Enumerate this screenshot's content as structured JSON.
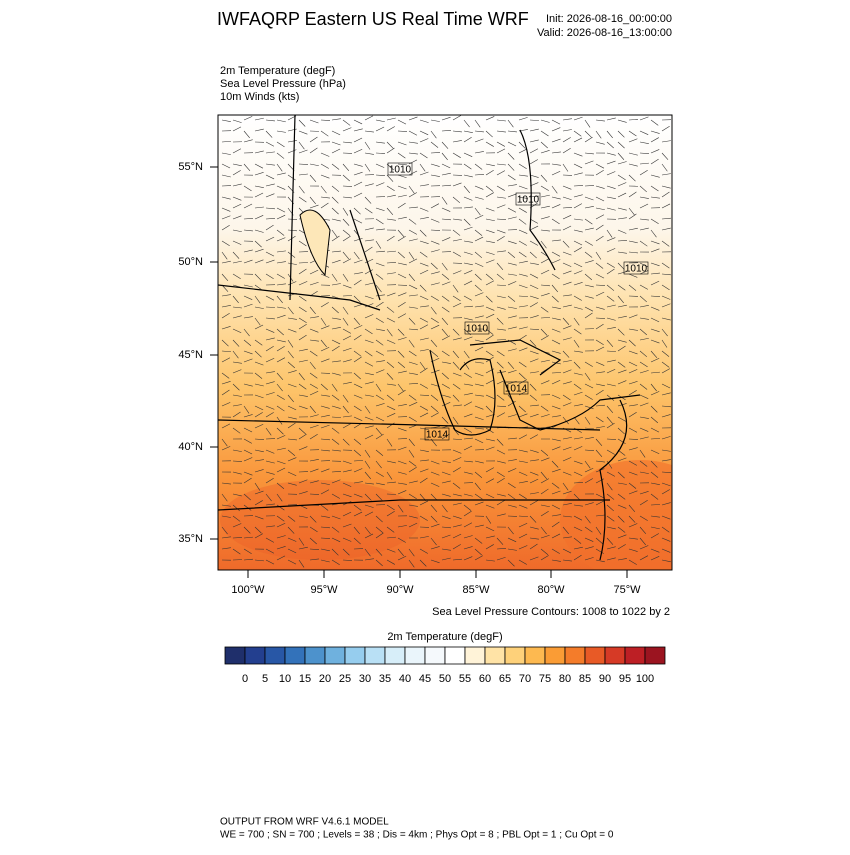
{
  "header": {
    "title": "IWFAQRP Eastern US Real Time WRF",
    "init": "Init: 2026-08-16_00:00:00",
    "valid": "Valid: 2026-08-16_13:00:00"
  },
  "fields": [
    "2m Temperature   (degF)",
    "Sea Level Pressure   (hPa)",
    "10m Winds   (kts)"
  ],
  "map": {
    "lat_labels": [
      "55°N",
      "50°N",
      "45°N",
      "40°N",
      "35°N"
    ],
    "lon_labels": [
      "100°W",
      "95°W",
      "90°W",
      "85°W",
      "80°W",
      "75°W"
    ],
    "contour_labels": [
      "1010",
      "1010",
      "1010",
      "1010",
      "1014",
      "1014"
    ],
    "contour_note": "Sea Level Pressure Contours: 1008 to 1022 by 2"
  },
  "colorbar": {
    "title": "2m Temperature  (degF)",
    "colors": [
      "#1f2f6b",
      "#233f8f",
      "#2857a6",
      "#3372ba",
      "#4d92cc",
      "#6fb1de",
      "#96cdee",
      "#b9e0f5",
      "#d7eef9",
      "#eaf5fb",
      "#f5f9fc",
      "#ffffff",
      "#fff3d8",
      "#ffe3a6",
      "#fed17a",
      "#fdb950",
      "#fa9c35",
      "#f47c2a",
      "#e85a26",
      "#d63a26",
      "#bd1f25",
      "#9b1420"
    ],
    "ticks": [
      0,
      5,
      10,
      15,
      20,
      25,
      30,
      35,
      40,
      45,
      50,
      55,
      60,
      65,
      70,
      75,
      80,
      85,
      90,
      95,
      100
    ]
  },
  "footer": {
    "line1": "OUTPUT FROM WRF V4.6.1 MODEL",
    "line2": "WE = 700 ; SN = 700 ; Levels = 38 ; Dis = 4km ; Phys Opt = 8 ; PBL Opt = 1 ; Cu Opt = 0"
  }
}
